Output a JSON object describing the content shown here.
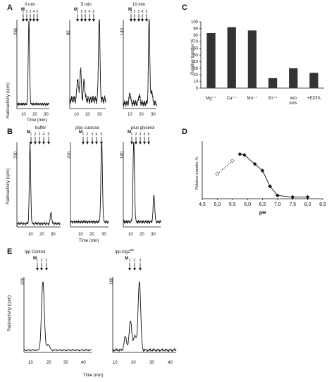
{
  "panel_letters": {
    "A": "A",
    "B": "B",
    "C": "C",
    "D": "D",
    "E": "E"
  },
  "marker_label": "M",
  "units": {
    "radio_y": "Radioactivity (cpm)",
    "radio_x": "Time (min)"
  },
  "panelA": {
    "titles": [
      "0 min",
      "5 min",
      "10 min"
    ],
    "yticks": [
      "236",
      "85",
      "140"
    ],
    "marker_nums": [
      "1",
      "2",
      "3",
      "4",
      "5"
    ],
    "x_ticks": [
      "10",
      "20",
      "30"
    ]
  },
  "panelB": {
    "titles": [
      "buffer",
      "plus sucrose",
      "plus glycerol"
    ],
    "yticks": [
      "230",
      "200",
      "180"
    ],
    "marker_nums": [
      "1",
      "2",
      "3",
      "4",
      "5"
    ],
    "x_ticks": [
      "10",
      "20",
      "30"
    ]
  },
  "panelE": {
    "titles": [
      "Ipp Control",
      "Ipp Alg2"
    ],
    "title_sup": "ZZ",
    "yticks": [
      "320",
      "160"
    ],
    "marker_nums": [
      "1",
      "2",
      "3"
    ],
    "x_ticks": [
      "10",
      "20",
      "30",
      "40"
    ]
  },
  "chart_data": [
    {
      "id": "C",
      "type": "bar",
      "ylabel": "Relative transfer %",
      "ylim": [
        0,
        100
      ],
      "yticks": [
        0,
        10,
        20,
        30,
        40,
        50,
        60,
        70,
        80,
        90,
        100
      ],
      "categories": [
        "Mg2+",
        "Ca2+",
        "Mn2+",
        "Zn2+",
        "w/o ions",
        "+EDTA"
      ],
      "category_labels": [
        "Mg⁺⁺",
        "Ca⁺⁺",
        "Mn⁺⁺",
        "Zn⁺⁺",
        "w/o\nions",
        "+EDTA"
      ],
      "values": [
        83,
        92,
        87,
        15,
        30,
        23
      ]
    },
    {
      "id": "D",
      "type": "line",
      "xlabel": "pH",
      "ylabel": "Relative transfer %",
      "xlim": [
        4.5,
        8.5
      ],
      "xticks": [
        "4,5",
        "5,0",
        "5,5",
        "6,0",
        "6,5",
        "7,0",
        "7,5",
        "8,0",
        "8,5"
      ],
      "ylim": [
        0,
        70
      ],
      "series": [
        {
          "style": "open-dotted",
          "x": [
            5.0,
            5.5
          ],
          "y": [
            30,
            46
          ]
        },
        {
          "style": "filled-diamond",
          "x": [
            5.75,
            5.9,
            6.25,
            6.5,
            6.75,
            7.0,
            7.5,
            8.0
          ],
          "y": [
            54,
            53,
            42,
            34,
            15,
            4,
            2,
            2
          ]
        }
      ]
    }
  ]
}
